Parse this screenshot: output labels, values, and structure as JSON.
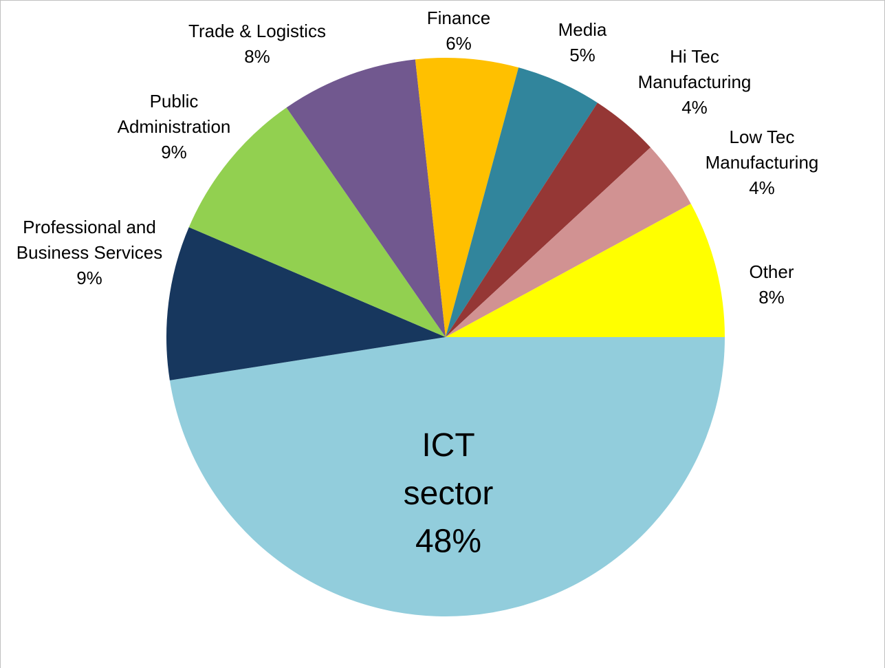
{
  "chart_data": {
    "type": "pie",
    "categories": [
      "ICT sector",
      "Professional and Business Services",
      "Public Administration",
      "Trade & Logistics",
      "Finance",
      "Media",
      "Hi Tec Manufacturing",
      "Low Tec Manufacturing",
      "Other"
    ],
    "values": [
      48,
      9,
      9,
      8,
      6,
      5,
      4,
      4,
      8
    ],
    "value_labels": [
      "48%",
      "9%",
      "9%",
      "8%",
      "6%",
      "5%",
      "4%",
      "4%",
      "8%"
    ],
    "colors": [
      "#92cddc",
      "#17375e",
      "#92d050",
      "#71588f",
      "#ffc000",
      "#31859c",
      "#953735",
      "#d19292",
      "#ffff00"
    ]
  }
}
